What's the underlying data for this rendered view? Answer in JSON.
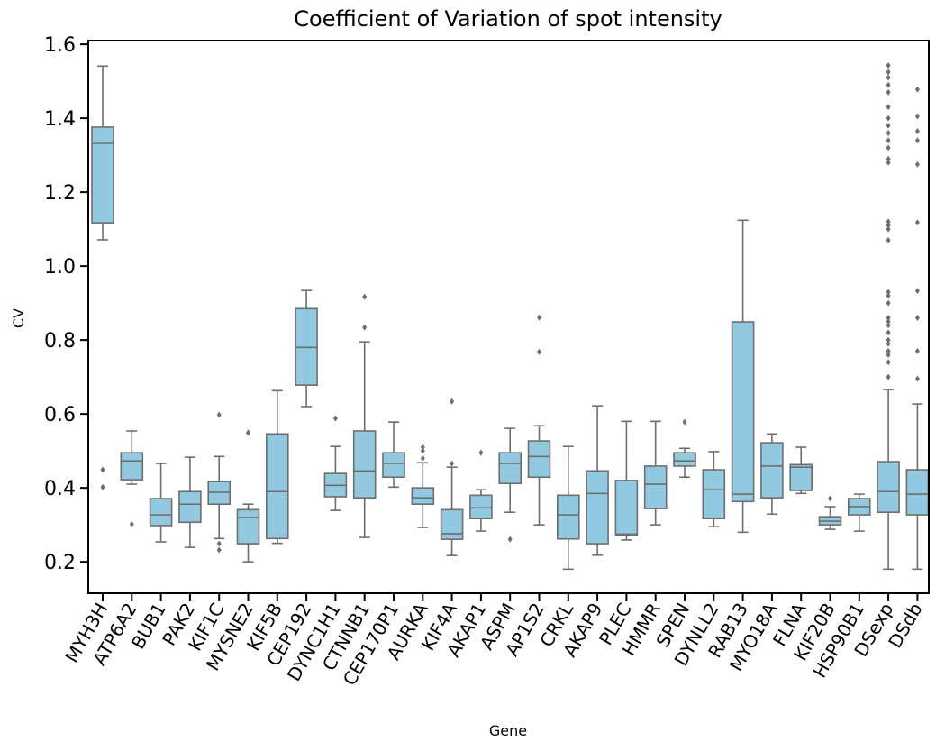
{
  "chart_data": {
    "type": "box",
    "title": "Coefficient of Variation of spot intensity",
    "x_label": "Gene",
    "y_label": "CV",
    "color": "#92c8e0",
    "edge_color": "#6e6e6e",
    "ylim": [
      0.115,
      1.61
    ],
    "yticks": [
      {
        "value": 0.2,
        "label": "0.2"
      },
      {
        "value": 0.4,
        "label": "0.4"
      },
      {
        "value": 0.6,
        "label": "0.6"
      },
      {
        "value": 0.8,
        "label": "0.8"
      },
      {
        "value": 1.0,
        "label": "1.0"
      },
      {
        "value": 1.2,
        "label": "1.2"
      },
      {
        "value": 1.4,
        "label": "1.4"
      },
      {
        "value": 1.6,
        "label": "1.6"
      }
    ],
    "categories": [
      "MYH3H",
      "ATP6A2",
      "BUB1",
      "PAK2",
      "KIF1C",
      "MYSNE2",
      "KIF5B",
      "CEP192",
      "DYNC1H1",
      "CTNNB1",
      "CEP170P1",
      "AURKA",
      "KIF4A",
      "AKAP1",
      "ASPM",
      "AP1S2",
      "CRKL",
      "AKAP9",
      "PLEC",
      "HMMR",
      "SPEN",
      "DYNLL2",
      "RAB13",
      "MYO18A",
      "FLNA",
      "KIF20B",
      "HSP90B1",
      "DSexp",
      "DSdb"
    ],
    "boxes": [
      {
        "whislo": 1.071,
        "q1": 1.117,
        "med": 1.332,
        "q3": 1.376,
        "whishi": 1.541,
        "fliers": [
          0.449,
          0.402
        ]
      },
      {
        "whislo": 0.41,
        "q1": 0.422,
        "med": 0.473,
        "q3": 0.495,
        "whishi": 0.554,
        "fliers": [
          0.302
        ]
      },
      {
        "whislo": 0.254,
        "q1": 0.298,
        "med": 0.327,
        "q3": 0.371,
        "whishi": 0.466
      },
      {
        "whislo": 0.239,
        "q1": 0.307,
        "med": 0.356,
        "q3": 0.39,
        "whishi": 0.483
      },
      {
        "whislo": 0.263,
        "q1": 0.356,
        "med": 0.388,
        "q3": 0.417,
        "whishi": 0.485,
        "fliers": [
          0.598,
          0.249,
          0.232
        ]
      },
      {
        "whislo": 0.2,
        "q1": 0.249,
        "med": 0.32,
        "q3": 0.341,
        "whishi": 0.356,
        "fliers": [
          0.549
        ]
      },
      {
        "whislo": 0.25,
        "q1": 0.263,
        "med": 0.39,
        "q3": 0.546,
        "whishi": 0.663
      },
      {
        "whislo": 0.62,
        "q1": 0.678,
        "med": 0.78,
        "q3": 0.885,
        "whishi": 0.934
      },
      {
        "whislo": 0.339,
        "q1": 0.376,
        "med": 0.407,
        "q3": 0.439,
        "whishi": 0.512,
        "fliers": [
          0.588
        ]
      },
      {
        "whislo": 0.266,
        "q1": 0.373,
        "med": 0.446,
        "q3": 0.554,
        "whishi": 0.795,
        "fliers": [
          0.834,
          0.917
        ]
      },
      {
        "whislo": 0.402,
        "q1": 0.429,
        "med": 0.466,
        "q3": 0.495,
        "whishi": 0.578
      },
      {
        "whislo": 0.293,
        "q1": 0.356,
        "med": 0.373,
        "q3": 0.4,
        "whishi": 0.468,
        "fliers": [
          0.51,
          0.5,
          0.48
        ]
      },
      {
        "whislo": 0.217,
        "q1": 0.261,
        "med": 0.276,
        "q3": 0.341,
        "whishi": 0.456,
        "fliers": [
          0.634,
          0.466
        ]
      },
      {
        "whislo": 0.283,
        "q1": 0.317,
        "med": 0.346,
        "q3": 0.38,
        "whishi": 0.395,
        "fliers": [
          0.495
        ]
      },
      {
        "whislo": 0.334,
        "q1": 0.412,
        "med": 0.466,
        "q3": 0.495,
        "whishi": 0.561,
        "fliers": [
          0.261
        ]
      },
      {
        "whislo": 0.3,
        "q1": 0.429,
        "med": 0.485,
        "q3": 0.527,
        "whishi": 0.568,
        "fliers": [
          0.861,
          0.768
        ]
      },
      {
        "whislo": 0.18,
        "q1": 0.262,
        "med": 0.327,
        "q3": 0.38,
        "whishi": 0.512
      },
      {
        "whislo": 0.218,
        "q1": 0.249,
        "med": 0.385,
        "q3": 0.446,
        "whishi": 0.622
      },
      {
        "whislo": 0.259,
        "q1": 0.273,
        "med": 0.275,
        "q3": 0.42,
        "whishi": 0.58
      },
      {
        "whislo": 0.3,
        "q1": 0.344,
        "med": 0.41,
        "q3": 0.459,
        "whishi": 0.58
      },
      {
        "whislo": 0.429,
        "q1": 0.459,
        "med": 0.473,
        "q3": 0.495,
        "whishi": 0.507,
        "fliers": [
          0.578
        ]
      },
      {
        "whislo": 0.295,
        "q1": 0.317,
        "med": 0.395,
        "q3": 0.449,
        "whishi": 0.498
      },
      {
        "whislo": 0.28,
        "q1": 0.363,
        "med": 0.383,
        "q3": 0.849,
        "whishi": 1.124
      },
      {
        "whislo": 0.329,
        "q1": 0.373,
        "med": 0.459,
        "q3": 0.522,
        "whishi": 0.546
      },
      {
        "whislo": 0.385,
        "q1": 0.393,
        "med": 0.456,
        "q3": 0.463,
        "whishi": 0.51
      },
      {
        "whislo": 0.288,
        "q1": 0.3,
        "med": 0.31,
        "q3": 0.322,
        "whishi": 0.349,
        "fliers": [
          0.371
        ]
      },
      {
        "whislo": 0.283,
        "q1": 0.327,
        "med": 0.349,
        "q3": 0.371,
        "whishi": 0.383
      },
      {
        "whislo": 0.18,
        "q1": 0.334,
        "med": 0.39,
        "q3": 0.471,
        "whishi": 0.666,
        "fliers": [
          1.543,
          1.525,
          1.51,
          1.49,
          1.47,
          1.43,
          1.4,
          1.38,
          1.36,
          1.34,
          1.32,
          1.29,
          1.28,
          1.12,
          1.11,
          1.1,
          1.07,
          0.93,
          0.92,
          0.9,
          0.86,
          0.85,
          0.84,
          0.82,
          0.8,
          0.79,
          0.77,
          0.76,
          0.74,
          0.7
        ]
      },
      {
        "whislo": 0.18,
        "q1": 0.327,
        "med": 0.383,
        "q3": 0.449,
        "whishi": 0.627,
        "fliers": [
          1.478,
          1.405,
          1.365,
          1.34,
          1.275,
          1.118,
          0.933,
          0.86,
          0.77,
          0.695
        ]
      }
    ]
  }
}
